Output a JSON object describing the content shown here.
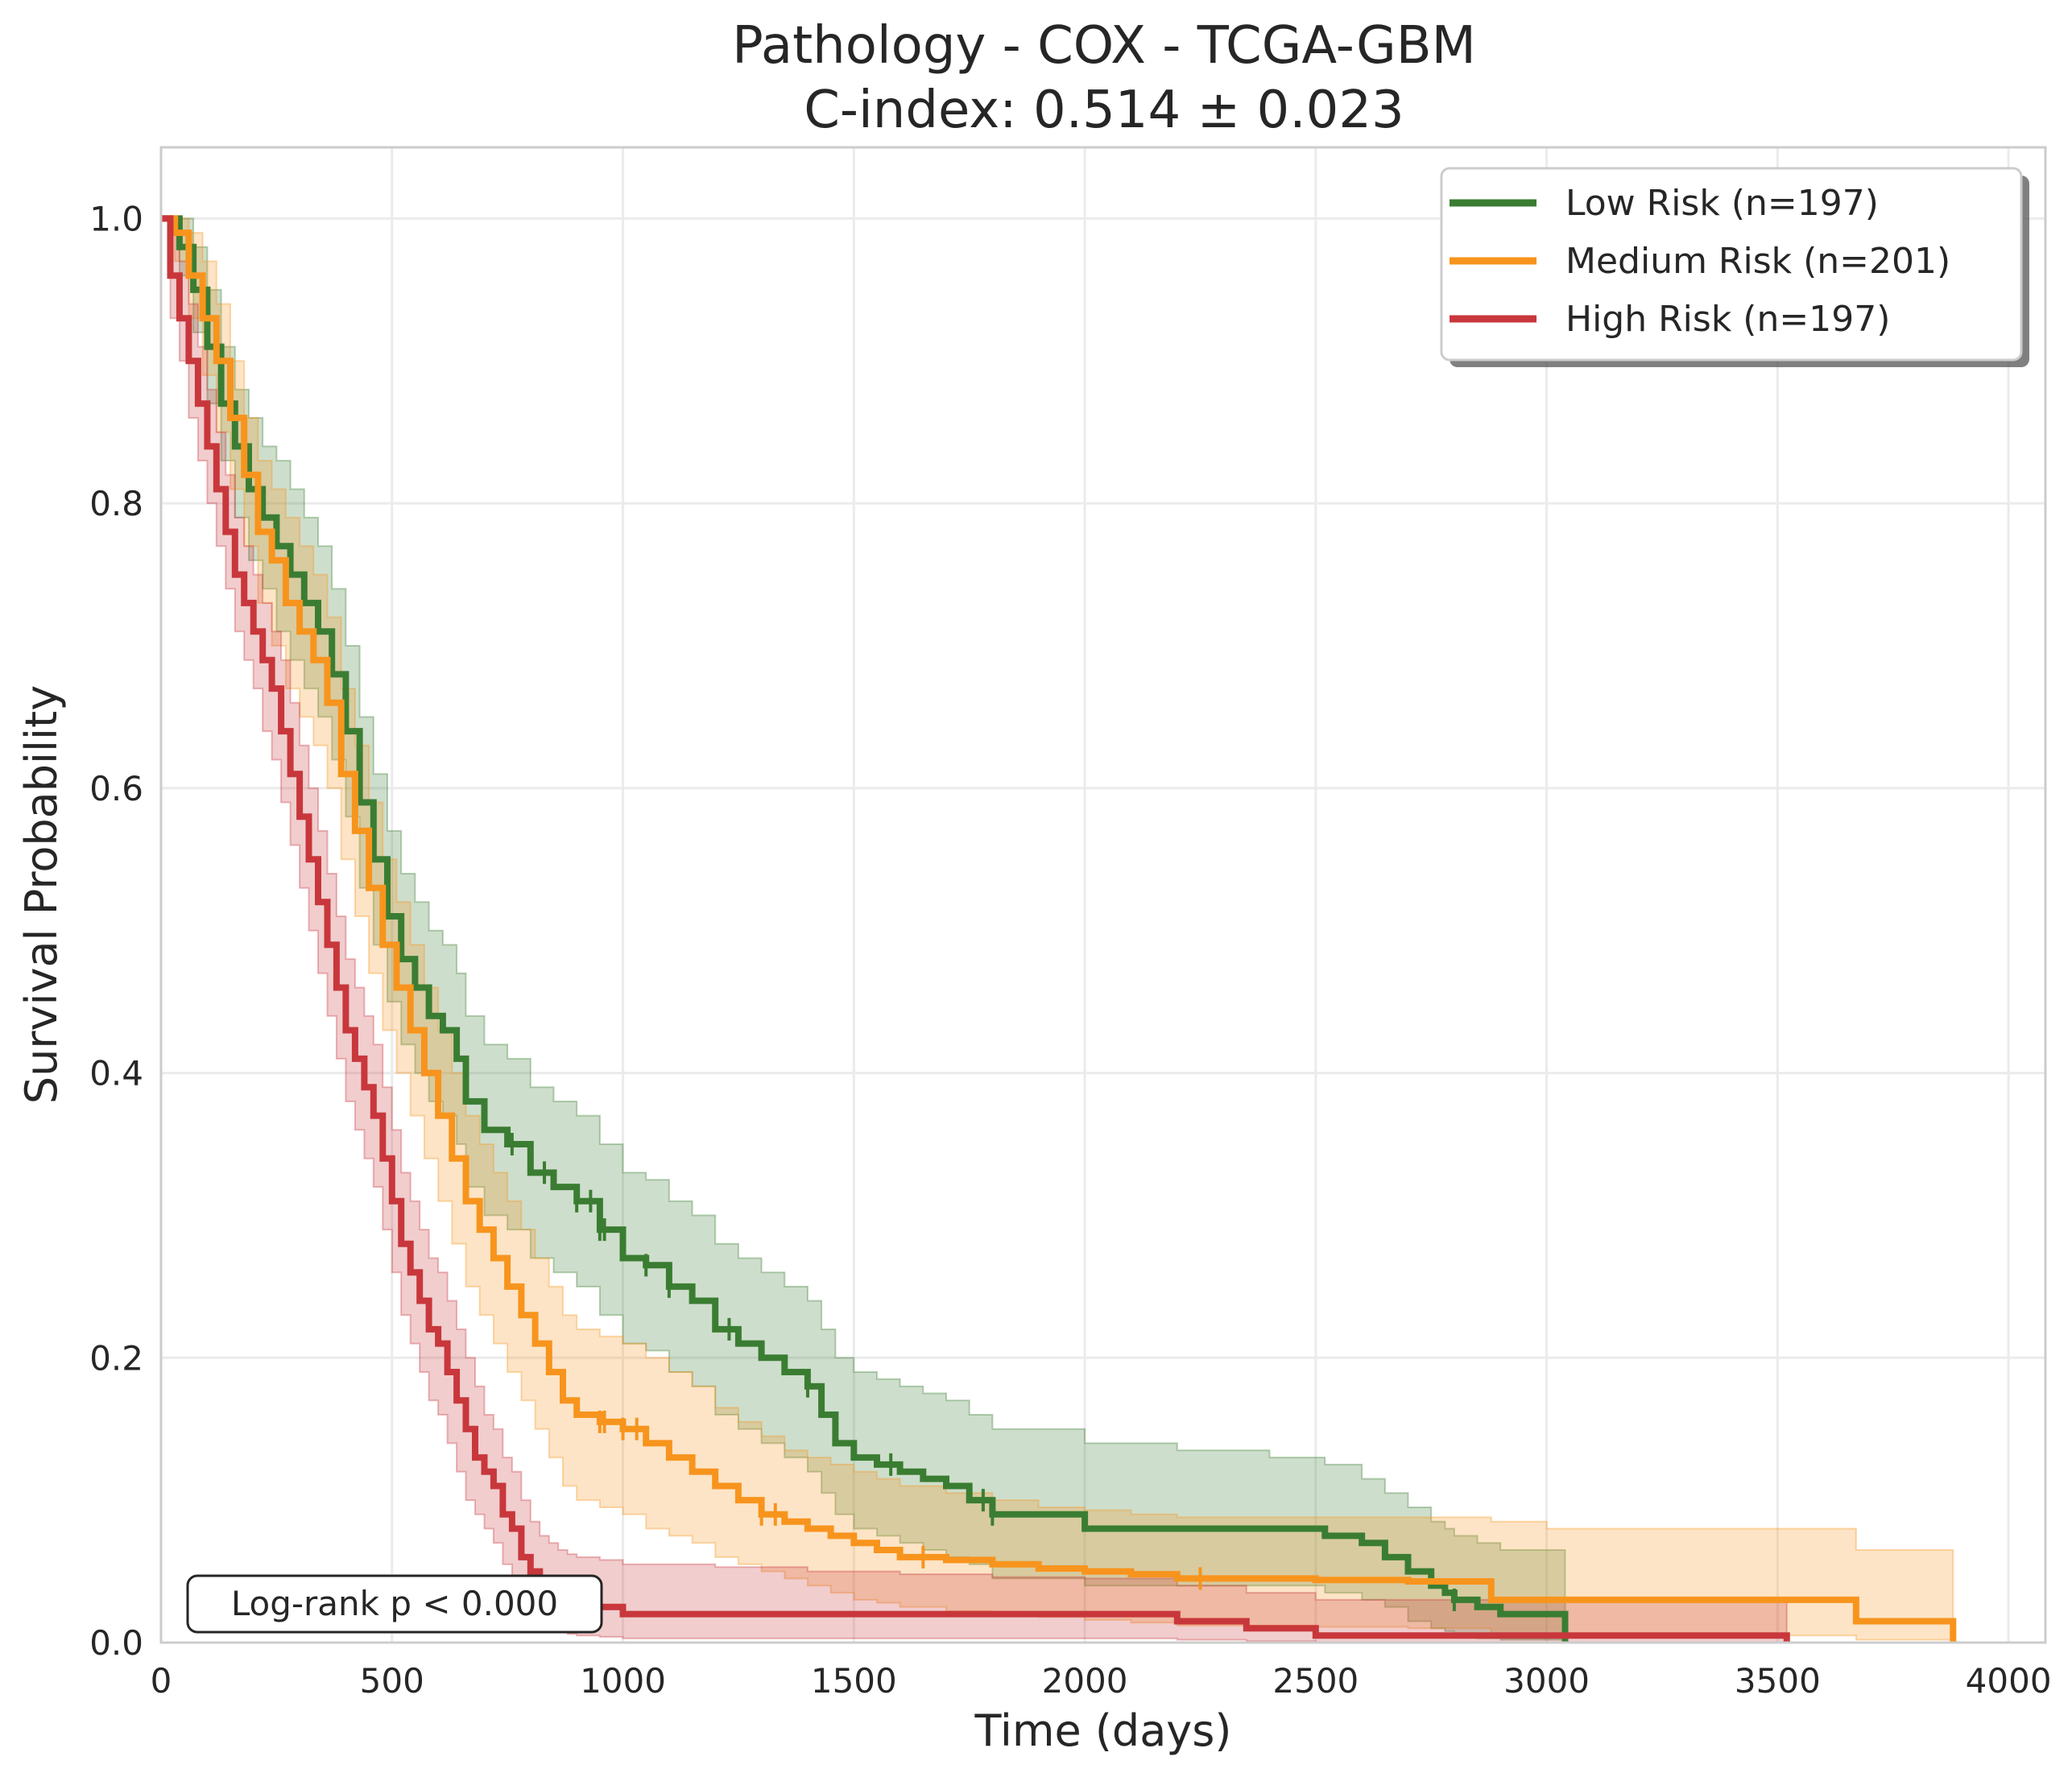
{
  "chart_data": {
    "type": "line",
    "title": "Pathology - COX - TCGA-GBM",
    "subtitle": "C-index: 0.514 ± 0.023",
    "xlabel": "Time (days)",
    "ylabel": "Survival Probability",
    "xlim": [
      0,
      4080
    ],
    "ylim": [
      0.0,
      1.05
    ],
    "xticks": [
      0,
      500,
      1000,
      1500,
      2000,
      2500,
      3000,
      3500,
      4000
    ],
    "yticks": [
      0.0,
      0.2,
      0.4,
      0.6,
      0.8,
      1.0
    ],
    "xtick_labels": [
      "0",
      "500",
      "1000",
      "1500",
      "2000",
      "2500",
      "3000",
      "3500",
      "4000"
    ],
    "ytick_labels": [
      "0.0",
      "0.2",
      "0.4",
      "0.6",
      "0.8",
      "1.0"
    ],
    "grid": true,
    "legend_position": "top-right",
    "annotation": "Log-rank p < 0.000",
    "series": [
      {
        "name": "Low Risk (n=197)",
        "color": "#3a7d32",
        "x": [
          0,
          40,
          70,
          100,
          130,
          160,
          190,
          220,
          250,
          280,
          310,
          340,
          370,
          400,
          430,
          460,
          490,
          520,
          550,
          580,
          610,
          640,
          660,
          700,
          750,
          800,
          850,
          900,
          950,
          1000,
          1050,
          1100,
          1150,
          1200,
          1250,
          1300,
          1350,
          1400,
          1430,
          1460,
          1500,
          1550,
          1600,
          1650,
          1700,
          1750,
          1800,
          2000,
          2200,
          2400,
          2520,
          2600,
          2650,
          2700,
          2750,
          2780,
          2800,
          2850,
          2900,
          2950,
          3000,
          3040
        ],
        "y": [
          1.0,
          0.98,
          0.95,
          0.91,
          0.87,
          0.84,
          0.81,
          0.79,
          0.77,
          0.75,
          0.73,
          0.71,
          0.68,
          0.64,
          0.59,
          0.55,
          0.51,
          0.48,
          0.46,
          0.44,
          0.43,
          0.41,
          0.38,
          0.36,
          0.35,
          0.33,
          0.32,
          0.31,
          0.29,
          0.27,
          0.265,
          0.25,
          0.24,
          0.22,
          0.21,
          0.2,
          0.19,
          0.18,
          0.16,
          0.14,
          0.13,
          0.125,
          0.12,
          0.115,
          0.11,
          0.1,
          0.09,
          0.08,
          0.08,
          0.08,
          0.075,
          0.07,
          0.06,
          0.05,
          0.04,
          0.035,
          0.03,
          0.025,
          0.02,
          0.02,
          0.02,
          0.0
        ],
        "ci_low": [
          1.0,
          0.96,
          0.92,
          0.87,
          0.83,
          0.79,
          0.76,
          0.74,
          0.71,
          0.69,
          0.67,
          0.65,
          0.62,
          0.58,
          0.53,
          0.49,
          0.45,
          0.42,
          0.4,
          0.38,
          0.37,
          0.35,
          0.32,
          0.3,
          0.29,
          0.27,
          0.26,
          0.25,
          0.23,
          0.21,
          0.205,
          0.19,
          0.18,
          0.16,
          0.15,
          0.14,
          0.13,
          0.12,
          0.105,
          0.09,
          0.08,
          0.075,
          0.07,
          0.065,
          0.06,
          0.055,
          0.045,
          0.04,
          0.04,
          0.04,
          0.035,
          0.03,
          0.025,
          0.015,
          0.01,
          0.008,
          0.005,
          0.003,
          0.002,
          0.002,
          0.002,
          0.0
        ],
        "ci_high": [
          1.0,
          1.0,
          0.98,
          0.95,
          0.91,
          0.88,
          0.86,
          0.84,
          0.83,
          0.81,
          0.79,
          0.77,
          0.74,
          0.7,
          0.65,
          0.61,
          0.57,
          0.54,
          0.52,
          0.5,
          0.49,
          0.47,
          0.44,
          0.42,
          0.41,
          0.39,
          0.38,
          0.37,
          0.35,
          0.33,
          0.325,
          0.31,
          0.3,
          0.28,
          0.27,
          0.26,
          0.25,
          0.24,
          0.22,
          0.2,
          0.19,
          0.185,
          0.18,
          0.175,
          0.17,
          0.16,
          0.15,
          0.14,
          0.135,
          0.13,
          0.125,
          0.115,
          0.105,
          0.095,
          0.085,
          0.08,
          0.075,
          0.07,
          0.065,
          0.065,
          0.065,
          0.065
        ],
        "censor_x": [
          760,
          830,
          900,
          930,
          950,
          960,
          1050,
          1100,
          1230,
          1400,
          1580,
          1780,
          1800,
          2800
        ]
      },
      {
        "name": "Medium Risk (n=201)",
        "color": "#f7941d",
        "x": [
          0,
          30,
          60,
          90,
          120,
          150,
          180,
          210,
          240,
          270,
          300,
          330,
          360,
          390,
          420,
          450,
          480,
          510,
          540,
          570,
          600,
          630,
          660,
          690,
          720,
          750,
          780,
          810,
          840,
          870,
          900,
          950,
          1000,
          1050,
          1100,
          1150,
          1200,
          1250,
          1300,
          1350,
          1400,
          1450,
          1500,
          1550,
          1600,
          1700,
          1800,
          1900,
          2000,
          2100,
          2200,
          2300,
          2500,
          2700,
          2880,
          3000,
          3200,
          3500,
          3670,
          3880
        ],
        "y": [
          1.0,
          0.99,
          0.96,
          0.93,
          0.9,
          0.86,
          0.82,
          0.78,
          0.76,
          0.73,
          0.71,
          0.69,
          0.66,
          0.61,
          0.57,
          0.53,
          0.49,
          0.46,
          0.43,
          0.4,
          0.37,
          0.34,
          0.31,
          0.29,
          0.27,
          0.25,
          0.23,
          0.21,
          0.19,
          0.17,
          0.16,
          0.155,
          0.15,
          0.14,
          0.13,
          0.12,
          0.11,
          0.1,
          0.09,
          0.085,
          0.08,
          0.075,
          0.07,
          0.065,
          0.06,
          0.058,
          0.055,
          0.052,
          0.05,
          0.048,
          0.045,
          0.045,
          0.044,
          0.043,
          0.03,
          0.03,
          0.03,
          0.03,
          0.015,
          0.0
        ],
        "ci_low": [
          1.0,
          0.97,
          0.93,
          0.89,
          0.85,
          0.81,
          0.77,
          0.73,
          0.7,
          0.67,
          0.65,
          0.63,
          0.6,
          0.55,
          0.51,
          0.47,
          0.43,
          0.4,
          0.37,
          0.34,
          0.31,
          0.28,
          0.25,
          0.23,
          0.21,
          0.19,
          0.17,
          0.15,
          0.13,
          0.11,
          0.1,
          0.095,
          0.09,
          0.08,
          0.075,
          0.07,
          0.06,
          0.055,
          0.05,
          0.045,
          0.04,
          0.035,
          0.03,
          0.028,
          0.025,
          0.022,
          0.02,
          0.018,
          0.016,
          0.014,
          0.012,
          0.012,
          0.011,
          0.01,
          0.005,
          0.005,
          0.005,
          0.005,
          0.002,
          0.0
        ],
        "ci_high": [
          1.0,
          1.0,
          0.99,
          0.97,
          0.94,
          0.9,
          0.86,
          0.83,
          0.81,
          0.79,
          0.77,
          0.75,
          0.72,
          0.67,
          0.63,
          0.59,
          0.55,
          0.52,
          0.49,
          0.46,
          0.43,
          0.4,
          0.37,
          0.35,
          0.33,
          0.31,
          0.29,
          0.27,
          0.25,
          0.23,
          0.22,
          0.215,
          0.21,
          0.2,
          0.19,
          0.18,
          0.165,
          0.155,
          0.145,
          0.135,
          0.13,
          0.125,
          0.12,
          0.115,
          0.11,
          0.105,
          0.1,
          0.095,
          0.093,
          0.09,
          0.088,
          0.088,
          0.088,
          0.088,
          0.085,
          0.08,
          0.08,
          0.08,
          0.065,
          0.065
        ],
        "censor_x": [
          950,
          960,
          1000,
          1030,
          1300,
          1330,
          1650,
          2250
        ]
      },
      {
        "name": "High Risk (n=197)",
        "color": "#c8373b",
        "x": [
          0,
          20,
          40,
          60,
          80,
          100,
          120,
          140,
          160,
          180,
          200,
          220,
          240,
          260,
          280,
          300,
          320,
          340,
          360,
          380,
          400,
          420,
          440,
          460,
          480,
          500,
          520,
          540,
          560,
          580,
          600,
          620,
          640,
          660,
          680,
          700,
          720,
          740,
          760,
          780,
          800,
          820,
          840,
          860,
          880,
          900,
          950,
          1000,
          1050,
          1100,
          1200,
          1400,
          1600,
          1800,
          2000,
          2200,
          2350,
          2500,
          3000,
          3520
        ],
        "y": [
          1.0,
          0.96,
          0.93,
          0.9,
          0.87,
          0.84,
          0.81,
          0.78,
          0.75,
          0.73,
          0.71,
          0.69,
          0.67,
          0.64,
          0.61,
          0.58,
          0.55,
          0.52,
          0.49,
          0.46,
          0.43,
          0.41,
          0.39,
          0.37,
          0.34,
          0.31,
          0.28,
          0.26,
          0.24,
          0.22,
          0.21,
          0.19,
          0.17,
          0.15,
          0.13,
          0.12,
          0.11,
          0.09,
          0.08,
          0.06,
          0.05,
          0.04,
          0.035,
          0.03,
          0.028,
          0.025,
          0.025,
          0.02,
          0.02,
          0.02,
          0.02,
          0.02,
          0.02,
          0.02,
          0.02,
          0.015,
          0.01,
          0.005,
          0.005,
          0.0
        ],
        "ci_low": [
          1.0,
          0.93,
          0.9,
          0.86,
          0.83,
          0.8,
          0.77,
          0.74,
          0.71,
          0.69,
          0.67,
          0.64,
          0.62,
          0.59,
          0.56,
          0.53,
          0.5,
          0.47,
          0.44,
          0.41,
          0.38,
          0.36,
          0.34,
          0.32,
          0.29,
          0.26,
          0.23,
          0.21,
          0.19,
          0.17,
          0.16,
          0.14,
          0.12,
          0.1,
          0.09,
          0.08,
          0.07,
          0.055,
          0.045,
          0.03,
          0.02,
          0.012,
          0.01,
          0.008,
          0.006,
          0.005,
          0.004,
          0.003,
          0.003,
          0.003,
          0.003,
          0.003,
          0.003,
          0.003,
          0.003,
          0.002,
          0.001,
          0.0,
          0.0,
          0.0
        ],
        "ci_high": [
          1.0,
          0.99,
          0.97,
          0.94,
          0.91,
          0.88,
          0.85,
          0.82,
          0.79,
          0.77,
          0.75,
          0.73,
          0.71,
          0.69,
          0.66,
          0.63,
          0.6,
          0.57,
          0.54,
          0.51,
          0.48,
          0.46,
          0.44,
          0.42,
          0.39,
          0.36,
          0.33,
          0.31,
          0.29,
          0.27,
          0.26,
          0.24,
          0.22,
          0.2,
          0.18,
          0.16,
          0.15,
          0.13,
          0.12,
          0.1,
          0.085,
          0.075,
          0.07,
          0.065,
          0.062,
          0.06,
          0.058,
          0.055,
          0.055,
          0.055,
          0.053,
          0.05,
          0.048,
          0.046,
          0.045,
          0.04,
          0.035,
          0.03,
          0.03,
          0.03
        ],
        "censor_x": []
      }
    ]
  }
}
